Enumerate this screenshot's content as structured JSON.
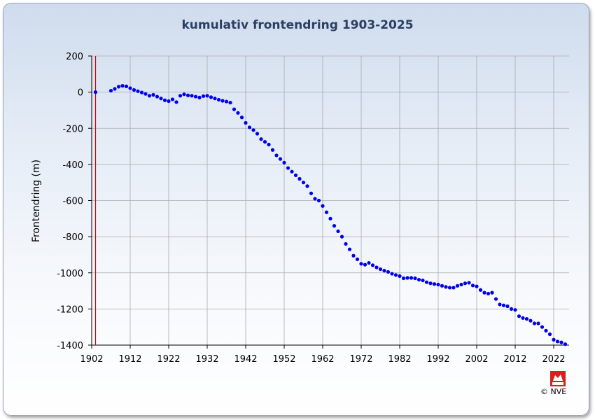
{
  "chart_data": {
    "type": "scatter",
    "title": "kumulativ frontendring 1903-2025",
    "ylabel": "Frontendring (m)",
    "xlabel": "",
    "xlim": [
      1902,
      2026
    ],
    "ylim": [
      -1400,
      200
    ],
    "xticks": [
      1902,
      1912,
      1922,
      1932,
      1942,
      1952,
      1962,
      1972,
      1982,
      1992,
      2002,
      2012,
      2022
    ],
    "yticks": [
      200,
      0,
      -200,
      -400,
      -600,
      -800,
      -1000,
      -1200,
      -1400
    ],
    "grid": true,
    "marker_color": "#0000ee",
    "reference_line": {
      "x": 1903,
      "color": "#cc0000"
    },
    "x": [
      1903,
      1907,
      1908,
      1909,
      1910,
      1911,
      1912,
      1913,
      1914,
      1915,
      1916,
      1917,
      1918,
      1919,
      1920,
      1921,
      1922,
      1923,
      1924,
      1925,
      1926,
      1927,
      1928,
      1929,
      1930,
      1931,
      1932,
      1933,
      1934,
      1935,
      1936,
      1937,
      1938,
      1939,
      1940,
      1941,
      1942,
      1943,
      1944,
      1945,
      1946,
      1947,
      1948,
      1949,
      1950,
      1951,
      1952,
      1953,
      1954,
      1955,
      1956,
      1957,
      1958,
      1959,
      1960,
      1961,
      1962,
      1963,
      1964,
      1965,
      1966,
      1967,
      1968,
      1969,
      1970,
      1971,
      1972,
      1973,
      1974,
      1975,
      1976,
      1977,
      1978,
      1979,
      1980,
      1981,
      1982,
      1983,
      1984,
      1985,
      1986,
      1987,
      1988,
      1989,
      1990,
      1991,
      1992,
      1993,
      1994,
      1995,
      1996,
      1997,
      1998,
      1999,
      2000,
      2001,
      2002,
      2003,
      2004,
      2005,
      2006,
      2007,
      2008,
      2009,
      2010,
      2011,
      2012,
      2013,
      2014,
      2015,
      2016,
      2017,
      2018,
      2019,
      2020,
      2021,
      2022,
      2023,
      2024,
      2025
    ],
    "y": [
      0,
      8,
      18,
      30,
      35,
      32,
      22,
      12,
      5,
      -2,
      -10,
      -20,
      -15,
      -25,
      -35,
      -45,
      -50,
      -40,
      -55,
      -20,
      -12,
      -18,
      -20,
      -25,
      -30,
      -22,
      -20,
      -28,
      -35,
      -42,
      -48,
      -52,
      -58,
      -95,
      -115,
      -140,
      -170,
      -195,
      -210,
      -230,
      -260,
      -275,
      -290,
      -320,
      -350,
      -370,
      -390,
      -420,
      -440,
      -460,
      -480,
      -500,
      -520,
      -560,
      -590,
      -600,
      -630,
      -665,
      -700,
      -740,
      -770,
      -800,
      -840,
      -870,
      -905,
      -925,
      -950,
      -955,
      -945,
      -958,
      -970,
      -980,
      -988,
      -995,
      -1005,
      -1012,
      -1018,
      -1030,
      -1028,
      -1028,
      -1030,
      -1038,
      -1042,
      -1052,
      -1058,
      -1062,
      -1065,
      -1072,
      -1078,
      -1082,
      -1082,
      -1072,
      -1065,
      -1058,
      -1055,
      -1070,
      -1075,
      -1095,
      -1110,
      -1115,
      -1110,
      -1145,
      -1175,
      -1180,
      -1185,
      -1200,
      -1205,
      -1240,
      -1250,
      -1255,
      -1265,
      -1280,
      -1280,
      -1300,
      -1320,
      -1340,
      -1370,
      -1380,
      -1385,
      -1395
    ]
  },
  "copyright": "© NVE",
  "logo_text": "NVE"
}
